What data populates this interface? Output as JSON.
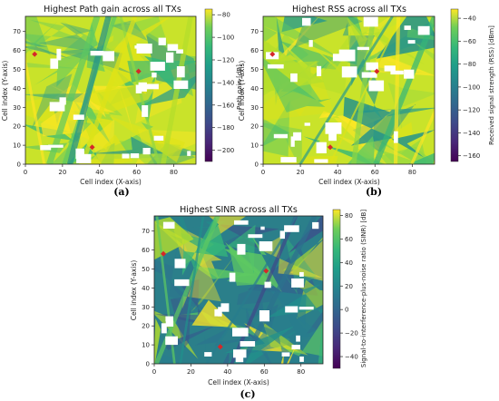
{
  "chart_data": [
    {
      "id": "a",
      "type": "heatmap",
      "subfigure_label": "(a)",
      "title": "Highest Path gain across all TXs",
      "xlabel": "Cell index (X-axis)",
      "ylabel": "Cell index (Y-axis)",
      "xlim": [
        0,
        92
      ],
      "ylim": [
        0,
        78
      ],
      "xticks": [
        0,
        20,
        40,
        60,
        80
      ],
      "yticks": [
        0,
        10,
        20,
        30,
        40,
        50,
        60,
        70
      ],
      "colorbar_label": "Path gain [dB]",
      "colorbar_range": [
        -210,
        -75
      ],
      "colorbar_ticks": [
        -80,
        -100,
        -120,
        -140,
        -160,
        -180,
        -200
      ],
      "colormap": "viridis",
      "transmitters": [
        [
          5,
          58
        ],
        [
          61,
          49
        ],
        [
          36,
          9
        ]
      ],
      "marker_color": "#d62728"
    },
    {
      "id": "b",
      "type": "heatmap",
      "subfigure_label": "(b)",
      "title": "Highest RSS across all TXs",
      "xlabel": "Cell index (X-axis)",
      "ylabel": "Cell index (Y-axis)",
      "xlim": [
        0,
        92
      ],
      "ylim": [
        0,
        78
      ],
      "xticks": [
        0,
        20,
        40,
        60,
        80
      ],
      "yticks": [
        0,
        10,
        20,
        30,
        40,
        50,
        60,
        70
      ],
      "colorbar_label": "Received signal strength (RSS) [dBm]",
      "colorbar_range": [
        -165,
        -32
      ],
      "colorbar_ticks": [
        -40,
        -60,
        -80,
        -100,
        -120,
        -140,
        -160
      ],
      "colormap": "viridis",
      "transmitters": [
        [
          5,
          58
        ],
        [
          61,
          49
        ],
        [
          36,
          9
        ]
      ],
      "marker_color": "#d62728"
    },
    {
      "id": "c",
      "type": "heatmap",
      "subfigure_label": "(c)",
      "title": "Highest SINR across all TXs",
      "xlabel": "Cell index (X-axis)",
      "ylabel": "Cell index (Y-axis)",
      "xlim": [
        0,
        92
      ],
      "ylim": [
        0,
        78
      ],
      "xticks": [
        0,
        20,
        40,
        60,
        80
      ],
      "yticks": [
        0,
        10,
        20,
        30,
        40,
        50,
        60,
        70
      ],
      "colorbar_label": "Signal-to-interference-plus-noise ratio (SINR) [dB]",
      "colorbar_range": [
        -50,
        85
      ],
      "colorbar_ticks": [
        80,
        60,
        40,
        20,
        0,
        -20,
        -40
      ],
      "colormap": "viridis",
      "transmitters": [
        [
          5,
          58
        ],
        [
          61,
          49
        ],
        [
          36,
          9
        ]
      ],
      "marker_color": "#d62728"
    }
  ]
}
